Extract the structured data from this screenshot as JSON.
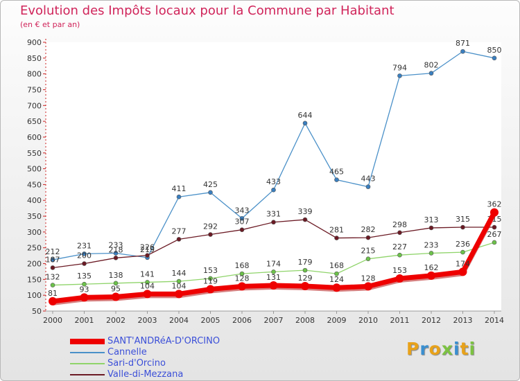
{
  "chart_data": {
    "type": "line",
    "title": "Evolution des Impôts locaux pour la Commune par Habitant",
    "subtitle": "(en € et par an)",
    "categories": [
      "2000",
      "2001",
      "2002",
      "2003",
      "2004",
      "2005",
      "2006",
      "2007",
      "2008",
      "2009",
      "2010",
      "2011",
      "2012",
      "2013",
      "2014"
    ],
    "ylim": [
      50,
      900
    ],
    "yticks": [
      50,
      100,
      150,
      200,
      250,
      300,
      350,
      400,
      450,
      500,
      550,
      600,
      650,
      700,
      750,
      800,
      850,
      900
    ],
    "grid": false,
    "series": [
      {
        "name": "Cannelle",
        "color": "#4a90c8",
        "marker": "#3a7fc0",
        "values": [
          212,
          231,
          233,
          219,
          411,
          425,
          343,
          433,
          644,
          465,
          443,
          794,
          802,
          871,
          850
        ],
        "labels": [
          "212",
          "231",
          "233",
          "219",
          "411",
          "425",
          "343",
          "433",
          "644",
          "465",
          "443",
          "794",
          "802",
          "871",
          "850"
        ]
      },
      {
        "name": "Valle-di-Mezzana",
        "color": "#6b1a24",
        "marker": "#6b1a24",
        "values": [
          187,
          200,
          218,
          226,
          277,
          292,
          307,
          331,
          339,
          281,
          282,
          298,
          313,
          315,
          315
        ],
        "labels": [
          "187",
          "200",
          "218",
          "226",
          "277",
          "292",
          "307",
          "331",
          "339",
          "281",
          "282",
          "298",
          "313",
          "315",
          "315"
        ]
      },
      {
        "name": "Sari-d'Orcino",
        "color": "#8fd46a",
        "marker": "#6cc24a",
        "values": [
          132,
          135,
          138,
          141,
          144,
          153,
          168,
          174,
          179,
          168,
          215,
          227,
          233,
          236,
          267
        ],
        "labels": [
          "132",
          "135",
          "138",
          "141",
          "144",
          "153",
          "168",
          "174",
          "179",
          "168",
          "215",
          "227",
          "233",
          "236",
          "267"
        ]
      },
      {
        "name": "SANT'ANDRéA-D'ORCINO",
        "color": "#ee0000",
        "marker": "#ee0000",
        "values": [
          81,
          93,
          95,
          104,
          104,
          119,
          128,
          131,
          129,
          124,
          128,
          153,
          162,
          174,
          362
        ],
        "labels": [
          "81",
          "93",
          "95",
          "104",
          "104",
          "119",
          "128",
          "131",
          "129",
          "124",
          "128",
          "153",
          "162",
          "174",
          "362"
        ]
      }
    ],
    "legend": [
      {
        "name": "SANT'ANDRéA-D'ORCINO",
        "color": "#ee0000",
        "text_color": "#3b4fd8"
      },
      {
        "name": "Cannelle",
        "color": "#4a90c8",
        "text_color": "#3b4fd8"
      },
      {
        "name": "Sari-d'Orcino",
        "color": "#8fd46a",
        "text_color": "#3b4fd8"
      },
      {
        "name": "Valle-di-Mezzana",
        "color": "#6b1a24",
        "text_color": "#3b4fd8"
      }
    ],
    "legend_position": "bottom-left"
  },
  "logo": {
    "letters": [
      "P",
      "r",
      "o",
      "x",
      "i",
      "t",
      "i"
    ],
    "colors": [
      "#e8a21a",
      "#3a8fd0",
      "#e8a21a",
      "#7cc242",
      "#3a8fd0",
      "#e8a21a",
      "#7cc242"
    ]
  }
}
